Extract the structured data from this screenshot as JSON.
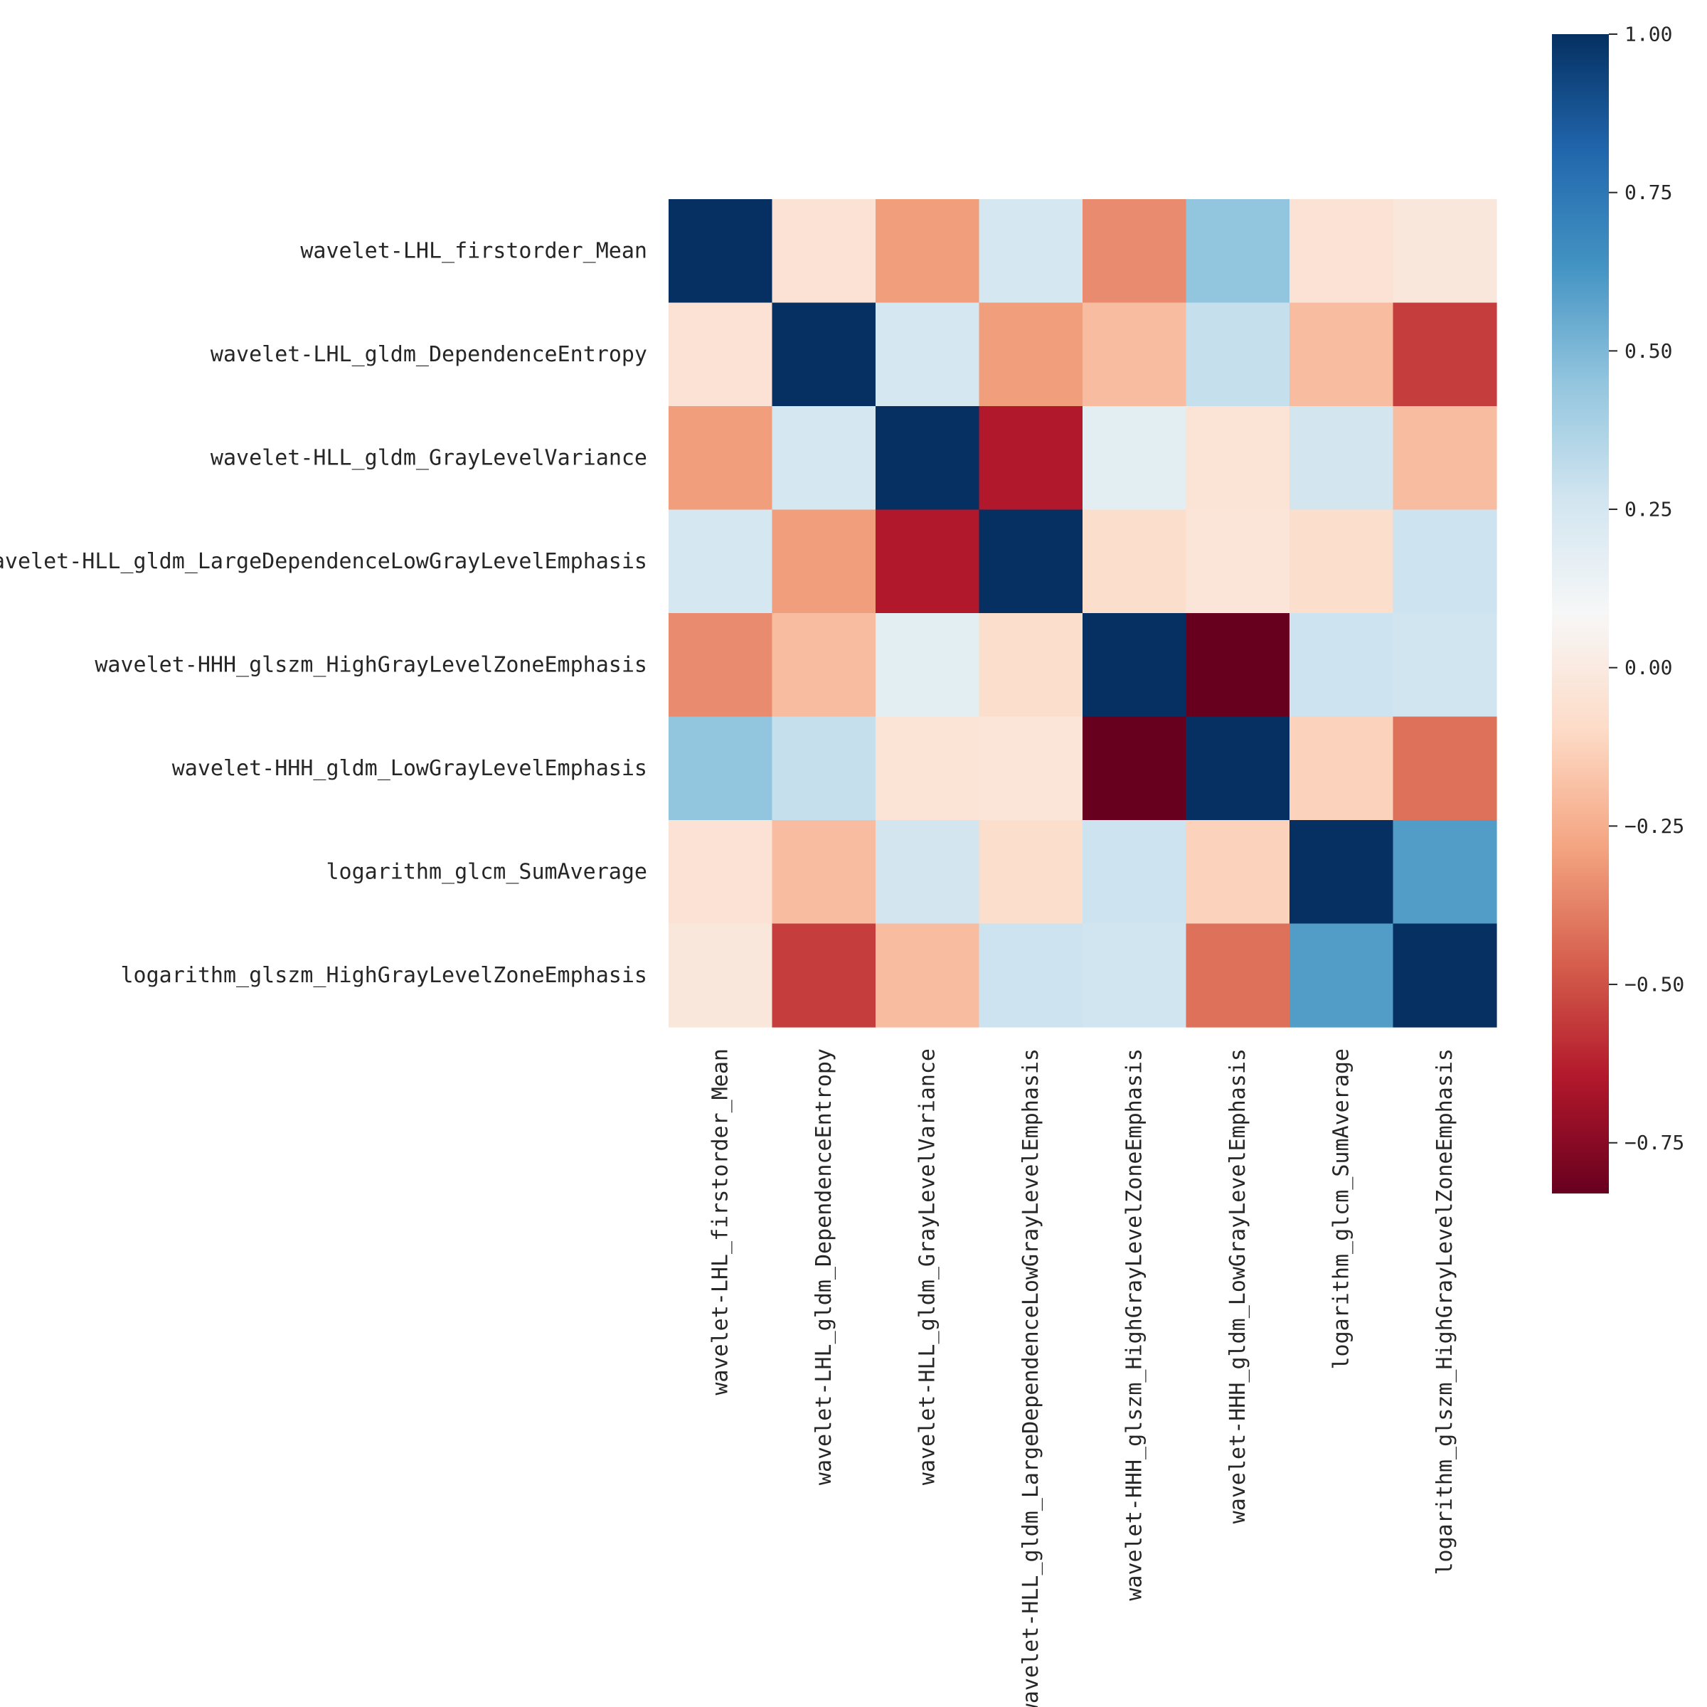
{
  "chart_data": {
    "type": "heatmap",
    "title": "",
    "xlabel": "",
    "ylabel": "",
    "labels": [
      "wavelet-LHL_firstorder_Mean",
      "wavelet-LHL_gldm_DependenceEntropy",
      "wavelet-HLL_gldm_GrayLevelVariance",
      "wavelet-HLL_gldm_LargeDependenceLowGrayLevelEmphasis",
      "wavelet-HHH_glszm_HighGrayLevelZoneEmphasis",
      "wavelet-HHH_gldm_LowGrayLevelEmphasis",
      "logarithm_glcm_SumAverage",
      "logarithm_glszm_HighGrayLevelZoneEmphasis"
    ],
    "matrix": [
      [
        1.0,
        -0.05,
        -0.3,
        0.25,
        -0.35,
        0.45,
        -0.05,
        -0.02
      ],
      [
        -0.05,
        1.0,
        0.25,
        -0.3,
        -0.2,
        0.3,
        -0.2,
        -0.55
      ],
      [
        -0.3,
        0.25,
        1.0,
        -0.65,
        0.18,
        -0.04,
        0.26,
        -0.2
      ],
      [
        0.25,
        -0.3,
        -0.65,
        1.0,
        -0.08,
        -0.03,
        -0.08,
        0.28
      ],
      [
        -0.35,
        -0.2,
        0.18,
        -0.08,
        1.0,
        -0.85,
        0.28,
        0.27
      ],
      [
        0.45,
        0.3,
        -0.04,
        -0.03,
        -0.85,
        1.0,
        -0.13,
        -0.42
      ],
      [
        -0.05,
        -0.2,
        0.26,
        -0.08,
        0.28,
        -0.13,
        1.0,
        0.6
      ],
      [
        -0.02,
        -0.55,
        -0.2,
        0.28,
        0.27,
        -0.42,
        0.6,
        1.0
      ]
    ],
    "colormap": "RdBu",
    "vmin": -0.83,
    "vmax": 1.0,
    "colorbar": {
      "ticks": [
        1.0,
        0.75,
        0.5,
        0.25,
        0.0,
        -0.25,
        -0.5,
        -0.75
      ],
      "tick_labels": [
        "1.00",
        "0.75",
        "0.50",
        "0.25",
        "0.00",
        "−0.25",
        "−0.50",
        "−0.75"
      ],
      "placement": "right"
    }
  }
}
